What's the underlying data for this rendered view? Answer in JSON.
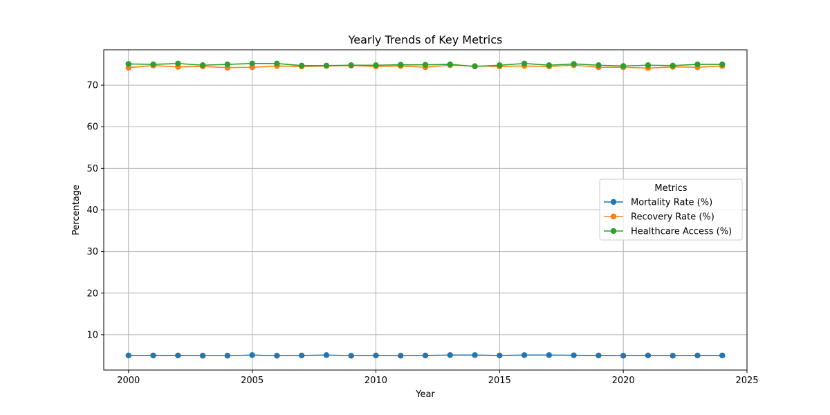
{
  "chart_data": {
    "type": "line",
    "title": "Yearly Trends of Key Metrics",
    "xlabel": "Year",
    "ylabel": "Percentage",
    "xlim": [
      1999,
      2025
    ],
    "ylim": [
      1.5,
      78.5
    ],
    "xticks": [
      2000,
      2005,
      2010,
      2015,
      2020,
      2025
    ],
    "yticks": [
      10,
      20,
      30,
      40,
      50,
      60,
      70
    ],
    "grid": true,
    "legend": {
      "title": "Metrics",
      "placement": "center-right"
    },
    "x": [
      2000,
      2001,
      2002,
      2003,
      2004,
      2005,
      2006,
      2007,
      2008,
      2009,
      2010,
      2011,
      2012,
      2013,
      2014,
      2015,
      2016,
      2017,
      2018,
      2019,
      2020,
      2021,
      2022,
      2023,
      2024
    ],
    "series": [
      {
        "name": "Mortality Rate (%)",
        "color": "#1f77b4",
        "values": [
          5.0,
          5.0,
          5.0,
          4.95,
          4.95,
          5.1,
          4.95,
          5.0,
          5.1,
          4.95,
          5.0,
          4.95,
          5.0,
          5.1,
          5.1,
          5.0,
          5.1,
          5.1,
          5.05,
          5.0,
          4.95,
          5.0,
          4.95,
          5.0,
          5.0
        ]
      },
      {
        "name": "Recovery Rate (%)",
        "color": "#ff7f0e",
        "values": [
          74.2,
          74.7,
          74.4,
          74.5,
          74.2,
          74.3,
          74.6,
          74.5,
          74.6,
          74.7,
          74.5,
          74.6,
          74.3,
          74.8,
          74.6,
          74.5,
          74.6,
          74.5,
          74.8,
          74.3,
          74.3,
          74.1,
          74.4,
          74.3,
          74.6
        ]
      },
      {
        "name": "Healthcare Access (%)",
        "color": "#2ca02c",
        "values": [
          75.1,
          75.0,
          75.2,
          74.8,
          75.0,
          75.2,
          75.2,
          74.7,
          74.7,
          74.8,
          74.8,
          74.9,
          74.9,
          75.0,
          74.5,
          74.8,
          75.2,
          74.8,
          75.1,
          74.8,
          74.6,
          74.8,
          74.7,
          75.0,
          75.0
        ]
      }
    ]
  }
}
